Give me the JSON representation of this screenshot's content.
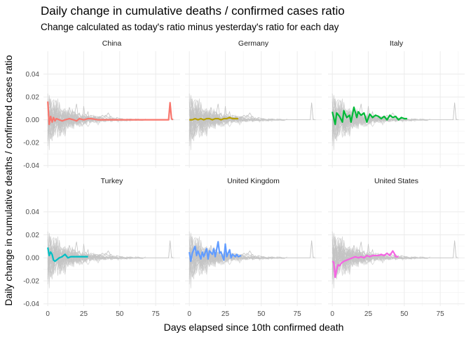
{
  "chart_data": {
    "type": "line",
    "title": "Daily change in cumulative deaths / confirmed cases ratio",
    "subtitle": "Change calculated as today's ratio minus yesterday's ratio for each day",
    "xlabel": "Days elapsed since 10th confirmed death",
    "ylabel": "Daily change in cumulative deaths / confirmed cases ratio",
    "xlim": [
      -3,
      92
    ],
    "ylim": [
      -0.042,
      0.06
    ],
    "x_ticks": [
      0,
      25,
      50,
      75
    ],
    "y_ticks": [
      -0.04,
      -0.02,
      0.0,
      0.02,
      0.04
    ],
    "x_tick_labels": [
      "0",
      "25",
      "50",
      "75"
    ],
    "y_tick_labels": [
      "-0.04",
      "-0.02",
      "0.00",
      "0.02",
      "0.04"
    ],
    "grid": true,
    "legend": "none",
    "background_series_color": "#c4c4c4",
    "panels": [
      {
        "name": "China",
        "color": "#f8766d",
        "x": [
          0,
          1,
          2,
          3,
          4,
          5,
          6,
          8,
          10,
          12,
          15,
          18,
          20,
          22,
          25,
          28,
          30,
          35,
          40,
          45,
          50,
          55,
          60,
          65,
          70,
          75,
          80,
          84,
          85,
          86,
          87
        ],
        "y": [
          0.016,
          -0.004,
          0.003,
          -0.002,
          0.002,
          -0.001,
          0.001,
          0.0,
          -0.001,
          0.0,
          0.001,
          0.0,
          -0.001,
          0.001,
          0.0,
          0.001,
          0.001,
          0.0,
          0.0,
          0.0,
          0.0,
          0.0,
          0.0,
          0.0,
          0.0,
          0.0,
          0.0,
          0.0,
          0.015,
          0.001,
          0.0
        ]
      },
      {
        "name": "Germany",
        "color": "#b79f00",
        "x": [
          0,
          2,
          4,
          6,
          8,
          10,
          12,
          14,
          16,
          18,
          20,
          22,
          24,
          26,
          28,
          30,
          32,
          34
        ],
        "y": [
          0.0,
          0.0,
          0.001,
          0.0,
          0.001,
          0.0,
          0.001,
          0.001,
          0.0,
          0.001,
          0.001,
          0.0,
          0.001,
          0.001,
          0.002,
          0.001,
          0.001,
          0.001
        ]
      },
      {
        "name": "Italy",
        "color": "#00ba38",
        "x": [
          0,
          2,
          3,
          5,
          7,
          8,
          10,
          12,
          13,
          15,
          17,
          18,
          20,
          22,
          24,
          26,
          28,
          30,
          32,
          34,
          36,
          38,
          40,
          42,
          44,
          46,
          48,
          50,
          52
        ],
        "y": [
          0.007,
          -0.004,
          0.006,
          0.003,
          -0.002,
          0.008,
          0.002,
          0.004,
          -0.002,
          0.011,
          0.002,
          0.007,
          0.004,
          0.006,
          -0.002,
          0.005,
          0.002,
          0.004,
          0.003,
          0.001,
          0.003,
          0.0,
          0.004,
          0.002,
          0.003,
          0.0,
          0.002,
          0.001,
          0.001
        ]
      },
      {
        "name": "Turkey",
        "color": "#00bfc4",
        "x": [
          0,
          1,
          2,
          3,
          4,
          5,
          6,
          8,
          10,
          12,
          14,
          16,
          18,
          20,
          22,
          24,
          26,
          28
        ],
        "y": [
          0.009,
          0.002,
          0.005,
          0.003,
          -0.002,
          -0.003,
          -0.002,
          0.0,
          0.001,
          0.003,
          0.0,
          0.001,
          0.001,
          0.001,
          0.001,
          0.001,
          0.001,
          0.001
        ]
      },
      {
        "name": "United Kingdom",
        "color": "#619cff",
        "x": [
          0,
          1,
          2,
          4,
          5,
          6,
          8,
          9,
          10,
          12,
          13,
          14,
          16,
          17,
          18,
          20,
          21,
          22,
          24,
          25,
          26,
          28,
          29,
          30,
          32,
          33,
          34,
          36
        ],
        "y": [
          0.005,
          -0.003,
          0.004,
          0.01,
          0.002,
          0.006,
          -0.001,
          0.005,
          0.001,
          0.008,
          -0.001,
          0.006,
          0.003,
          0.008,
          0.001,
          0.014,
          0.004,
          0.005,
          -0.002,
          0.012,
          0.001,
          0.007,
          0.0,
          0.003,
          0.001,
          0.003,
          0.001,
          0.002
        ]
      },
      {
        "name": "United States",
        "color": "#f564e3",
        "x": [
          0,
          1,
          2,
          3,
          4,
          5,
          6,
          8,
          10,
          12,
          14,
          16,
          18,
          20,
          22,
          24,
          26,
          28,
          30,
          32,
          34,
          36,
          38,
          40,
          42,
          43,
          44,
          46
        ],
        "y": [
          -0.003,
          -0.004,
          -0.017,
          -0.01,
          -0.006,
          -0.007,
          -0.005,
          -0.003,
          -0.002,
          -0.001,
          0.0,
          0.001,
          0.0,
          0.001,
          0.0,
          0.002,
          0.001,
          0.002,
          0.002,
          0.002,
          0.003,
          0.002,
          0.004,
          0.002,
          0.006,
          0.004,
          0.001,
          0.001
        ]
      }
    ]
  }
}
